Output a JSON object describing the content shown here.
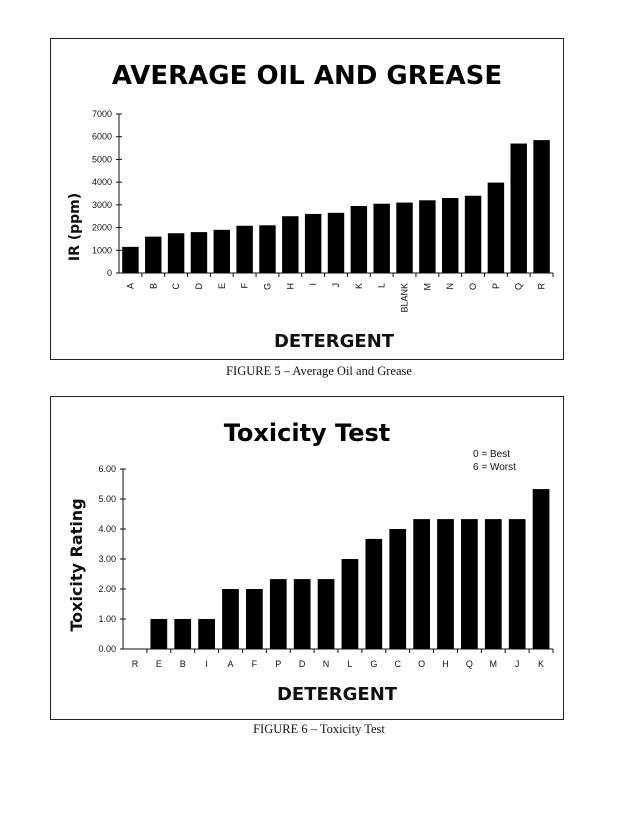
{
  "chart_data": [
    {
      "type": "bar",
      "title": "AVERAGE OIL AND GREASE",
      "xlabel": "DETERGENT",
      "ylabel": "IR (ppm)",
      "ylim": [
        0,
        7000
      ],
      "yticks": [
        "0",
        "1000",
        "2000",
        "3000",
        "4000",
        "5000",
        "6000",
        "7000"
      ],
      "categories": [
        "A",
        "B",
        "C",
        "D",
        "E",
        "F",
        "G",
        "H",
        "I",
        "J",
        "K",
        "L",
        "BLANK",
        "M",
        "N",
        "O",
        "P",
        "Q",
        "R"
      ],
      "values": [
        1150,
        1600,
        1750,
        1800,
        1900,
        2080,
        2100,
        2500,
        2600,
        2650,
        2950,
        3050,
        3100,
        3200,
        3300,
        3400,
        3980,
        5700,
        5850
      ],
      "bar_color": "#000000",
      "grid": false
    },
    {
      "type": "bar",
      "title": "Toxicity Test",
      "xlabel": "DETERGENT",
      "ylabel": "Toxicity Rating",
      "ylim": [
        0,
        6
      ],
      "yticks": [
        "0.00",
        "1.00",
        "2.00",
        "3.00",
        "4.00",
        "5.00",
        "6.00"
      ],
      "annotations": [
        "0 = Best",
        "6 = Worst"
      ],
      "categories": [
        "R",
        "E",
        "B",
        "I",
        "A",
        "F",
        "P",
        "D",
        "N",
        "L",
        "G",
        "C",
        "O",
        "H",
        "Q",
        "M",
        "J",
        "K"
      ],
      "values": [
        0,
        1,
        1,
        1,
        2,
        2,
        2.33,
        2.33,
        2.33,
        3,
        3.67,
        4,
        4.33,
        4.33,
        4.33,
        4.33,
        4.33,
        5.33
      ],
      "bar_color": "#000000",
      "grid": false
    }
  ],
  "captions": {
    "figure5": "FIGURE 5 – Average Oil and Grease",
    "figure6": "FIGURE 6 – Toxicity Test"
  }
}
